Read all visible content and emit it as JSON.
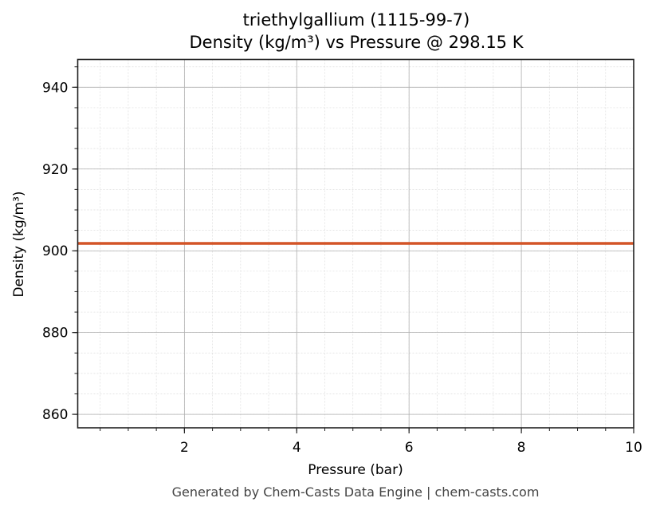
{
  "chart_data": {
    "type": "line",
    "title": "triethylgallium (1115-99-7)",
    "subtitle": "Density (kg/m³) vs Pressure @ 298.15 K",
    "xlabel": "Pressure (bar)",
    "ylabel": "Density (kg/m³)",
    "xlim": [
      0.1,
      10
    ],
    "ylim": [
      856.7,
      946.8
    ],
    "x_ticks": [
      2,
      4,
      6,
      8,
      10
    ],
    "x_tick_labels": [
      "2",
      "4",
      "6",
      "8",
      "10"
    ],
    "x_minor_step": 0.5,
    "y_ticks": [
      860,
      880,
      900,
      920,
      940
    ],
    "y_tick_labels": [
      "860",
      "880",
      "900",
      "920",
      "940"
    ],
    "y_minor_step": 5,
    "grid": true,
    "legend": null,
    "series": [
      {
        "name": "Density",
        "color": "#d35427",
        "x": [
          0.1,
          10
        ],
        "y": [
          901.8,
          901.8
        ]
      }
    ],
    "footer": "Generated by Chem-Casts Data Engine | chem-casts.com"
  }
}
